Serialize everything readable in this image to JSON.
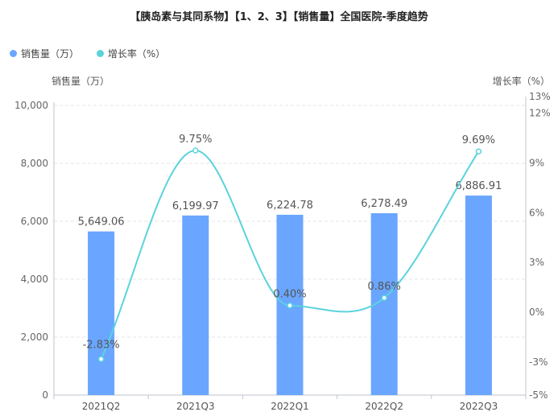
{
  "title": "【胰岛素与其同系物】【1、2、3】【销售量】全国医院-季度趋势",
  "legend": {
    "items": [
      {
        "label": "销售量（万）",
        "color": "#6aa6ff"
      },
      {
        "label": "增长率（%）",
        "color": "#5ad3dd"
      }
    ]
  },
  "axis_titles": {
    "left": "销售量（万）",
    "right": "增长率（%）"
  },
  "chart_data": {
    "type": "bar+line",
    "categories": [
      "2021Q2",
      "2021Q3",
      "2022Q1",
      "2022Q2",
      "2022Q3"
    ],
    "series": [
      {
        "name": "销售量（万）",
        "type": "bar",
        "axis": "left",
        "values": [
          5649.06,
          6199.97,
          6224.78,
          6278.49,
          6886.91
        ],
        "labels": [
          "5,649.06",
          "6,199.97",
          "6,224.78",
          "6,278.49",
          "6,886.91"
        ],
        "color": "#6aa6ff"
      },
      {
        "name": "增长率（%）",
        "type": "line",
        "axis": "right",
        "smooth": true,
        "values": [
          -2.83,
          9.75,
          0.4,
          0.86,
          9.69
        ],
        "labels": [
          "-2.83%",
          "9.75%",
          "0.40%",
          "0.86%",
          "9.69%"
        ],
        "color": "#5ad3dd"
      }
    ],
    "y_left": {
      "min": 0,
      "max": 10000,
      "ticks": [
        0,
        2000,
        4000,
        6000,
        8000,
        10000
      ],
      "tick_labels": [
        "0",
        "2,000",
        "4,000",
        "6,000",
        "8,000",
        "10,000"
      ]
    },
    "y_right": {
      "min": -5,
      "max": 13,
      "ticks": [
        -5,
        -3,
        0,
        3,
        6,
        9,
        12,
        13
      ],
      "tick_labels": [
        "-5%",
        "-3%",
        "0%",
        "3%",
        "6%",
        "9%",
        "12%",
        "13%"
      ]
    },
    "grid": true
  }
}
